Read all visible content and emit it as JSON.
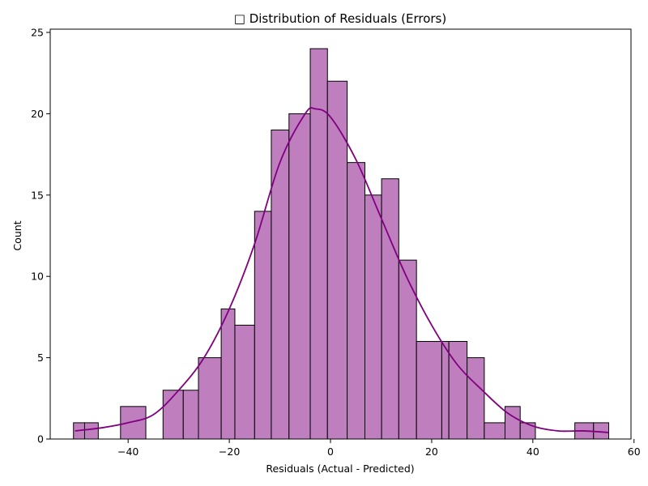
{
  "chart_data": {
    "type": "bar",
    "title": "□ Distribution of Residuals (Errors)",
    "xlabel": "Residuals (Actual - Predicted)",
    "ylabel": "Count",
    "xlim": [
      -55.4,
      59.4
    ],
    "ylim": [
      0,
      25.2
    ],
    "xticks": [
      -40,
      -20,
      0,
      20,
      40,
      60
    ],
    "yticks": [
      0,
      5,
      10,
      15,
      20,
      25
    ],
    "grid": false,
    "legend": "none",
    "bar_color": "#bf7fbf",
    "bar_edge_color": "#000000",
    "kde_color": "#800080",
    "bins": [
      {
        "x0": -50.8,
        "x1": -48.6,
        "count": 1
      },
      {
        "x0": -48.6,
        "x1": -45.9,
        "count": 1
      },
      {
        "x0": -41.5,
        "x1": -36.5,
        "count": 2
      },
      {
        "x0": -33.1,
        "x1": -29.1,
        "count": 3
      },
      {
        "x0": -29.1,
        "x1": -26.1,
        "count": 3
      },
      {
        "x0": -26.1,
        "x1": -21.6,
        "count": 5
      },
      {
        "x0": -21.6,
        "x1": -18.9,
        "count": 8
      },
      {
        "x0": -18.9,
        "x1": -15.0,
        "count": 7
      },
      {
        "x0": -15.0,
        "x1": -11.7,
        "count": 14
      },
      {
        "x0": -11.7,
        "x1": -8.2,
        "count": 19
      },
      {
        "x0": -8.2,
        "x1": -4.0,
        "count": 20
      },
      {
        "x0": -4.0,
        "x1": -0.6,
        "count": 24
      },
      {
        "x0": -0.6,
        "x1": 3.3,
        "count": 22
      },
      {
        "x0": 3.3,
        "x1": 6.8,
        "count": 17
      },
      {
        "x0": 6.8,
        "x1": 10.1,
        "count": 15
      },
      {
        "x0": 10.1,
        "x1": 13.5,
        "count": 16
      },
      {
        "x0": 13.5,
        "x1": 17.0,
        "count": 11
      },
      {
        "x0": 17.0,
        "x1": 22.0,
        "count": 6
      },
      {
        "x0": 22.0,
        "x1": 23.4,
        "count": 6
      },
      {
        "x0": 23.4,
        "x1": 27.0,
        "count": 6
      },
      {
        "x0": 27.0,
        "x1": 30.4,
        "count": 5
      },
      {
        "x0": 30.4,
        "x1": 34.5,
        "count": 1
      },
      {
        "x0": 34.5,
        "x1": 37.5,
        "count": 2
      },
      {
        "x0": 37.5,
        "x1": 40.5,
        "count": 1
      },
      {
        "x0": 48.3,
        "x1": 52.0,
        "count": 1
      },
      {
        "x0": 52.0,
        "x1": 55.0,
        "count": 1
      }
    ],
    "kde": {
      "x": [
        -50.5,
        -45,
        -40,
        -35,
        -30,
        -25,
        -20,
        -15,
        -10,
        -5,
        -3,
        0,
        5,
        10,
        15,
        20,
        25,
        30,
        35,
        40,
        45,
        50,
        55
      ],
      "y": [
        0.5,
        0.7,
        1.0,
        1.5,
        3.0,
        5.0,
        8.0,
        12.0,
        17.0,
        20.0,
        20.3,
        19.8,
        17.2,
        13.6,
        10.0,
        7.0,
        4.6,
        3.0,
        1.6,
        0.8,
        0.5,
        0.5,
        0.4
      ]
    }
  }
}
